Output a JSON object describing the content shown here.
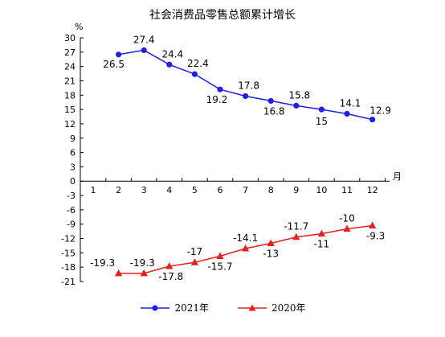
{
  "chart_data": {
    "type": "line",
    "title": "社会消费品零售总额累计增长",
    "ylabel": "%",
    "xlabel": "月",
    "ylim": [
      -21,
      30
    ],
    "yticks": [
      30,
      27,
      24,
      21,
      18,
      15,
      12,
      9,
      6,
      3,
      0,
      -3,
      -6,
      -9,
      -12,
      -15,
      -18,
      -21
    ],
    "categories": [
      "1",
      "2",
      "3",
      "4",
      "5",
      "6",
      "7",
      "8",
      "9",
      "10",
      "11",
      "12"
    ],
    "grid": false,
    "legend_position": "bottom",
    "series": [
      {
        "name": "2021年",
        "color": "#1f1fe6",
        "marker": "circle",
        "x": [
          "2",
          "3",
          "4",
          "5",
          "6",
          "7",
          "8",
          "9",
          "10",
          "11",
          "12"
        ],
        "values": [
          26.5,
          27.4,
          24.4,
          22.4,
          19.2,
          17.8,
          16.8,
          15.8,
          15,
          14.1,
          12.9
        ]
      },
      {
        "name": "2020年",
        "color": "#e61e1e",
        "marker": "triangle",
        "x": [
          "2",
          "3",
          "4",
          "5",
          "6",
          "7",
          "8",
          "9",
          "10",
          "11",
          "12"
        ],
        "values": [
          -19.3,
          -19.3,
          -17.8,
          -17,
          -15.7,
          -14.1,
          -13,
          -11.7,
          -11,
          -10,
          -9.3
        ]
      }
    ]
  }
}
